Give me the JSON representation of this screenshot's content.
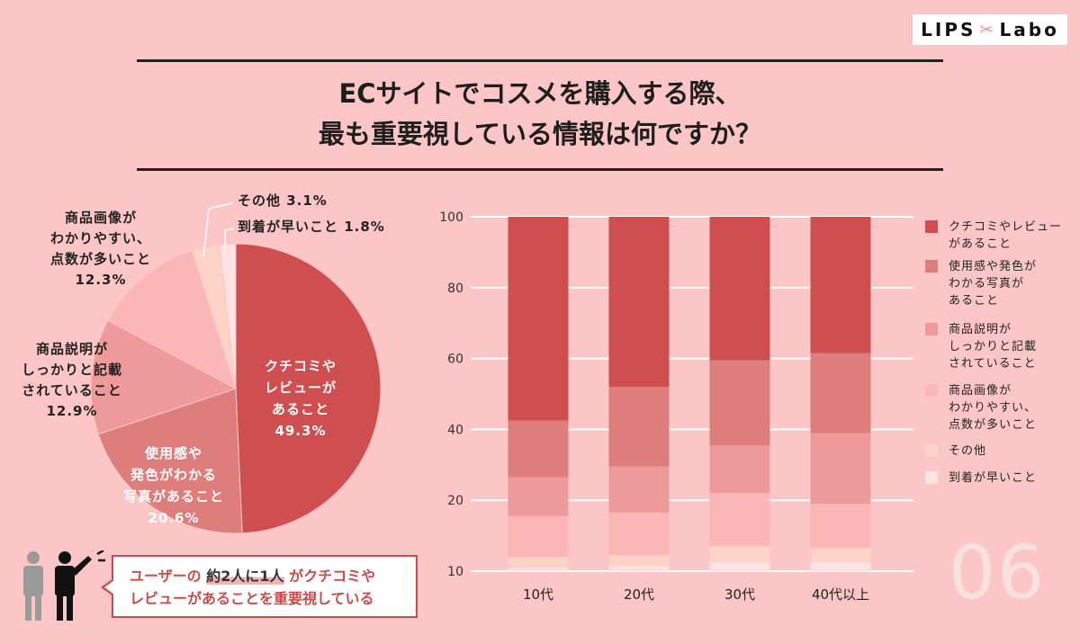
{
  "brand": {
    "left": "LIPS",
    "right": "Labo"
  },
  "title": {
    "line1": "ECサイトでコスメを購入する際、",
    "line2": "最も重要視している情報は何ですか？"
  },
  "colors": {
    "background": "#fbc6c5",
    "reviews": "#cf4f51",
    "photos": "#dd7e7c",
    "description": "#ef9a9a",
    "images": "#fbb7b7",
    "other": "#fcd3c4",
    "delivery": "#fde3e3"
  },
  "pie_labels": [
    {
      "lines": [
        "クチコミや",
        "レビューが",
        "あること",
        "49.3%"
      ]
    },
    {
      "lines": [
        "使用感や",
        "発色がわかる",
        "写真があること",
        "20.6%"
      ]
    },
    {
      "lines": [
        "商品説明が",
        "しっかりと記載",
        "されていること",
        "12.9%"
      ]
    },
    {
      "lines": [
        "商品画像が",
        "わかりやすい、",
        "点数が多いこと",
        "12.3%"
      ]
    },
    {
      "lines": [
        "その他 3.1%"
      ]
    },
    {
      "lines": [
        "到着が早いこと 1.8%"
      ]
    }
  ],
  "legend": [
    {
      "lines": [
        "クチコミやレビュー",
        "があること"
      ]
    },
    {
      "lines": [
        "使用感や発色が",
        "わかる写真が",
        "あること"
      ]
    },
    {
      "lines": [
        "商品説明が",
        "しっかりと記載",
        "されていること"
      ]
    },
    {
      "lines": [
        "商品画像が",
        "わかりやすい、",
        "点数が多いこと"
      ]
    },
    {
      "lines": [
        "その他"
      ]
    },
    {
      "lines": [
        "到着が早いこと"
      ]
    }
  ],
  "y_ticks": [
    "100",
    "80",
    "60",
    "40",
    "20",
    "10"
  ],
  "callout": {
    "part1": "ユーザーの",
    "highlight1": "約2人に1人",
    "part2": "がクチコミや",
    "line2": "レビューがあることを重要視している"
  },
  "page_number": "06",
  "chart_data": [
    {
      "type": "pie",
      "labels": [
        "クチコミやレビューがあること",
        "使用感や発色がわかる写真があること",
        "商品説明がしっかりと記載されていること",
        "商品画像がわかりやすい、点数が多いこと",
        "その他",
        "到着が早いこと"
      ],
      "values": [
        49.3,
        20.6,
        12.9,
        12.3,
        3.1,
        1.8
      ]
    },
    {
      "type": "bar",
      "stacked": true,
      "categories": [
        "10代",
        "20代",
        "30代",
        "40代以上"
      ],
      "y_tick_labels": [
        "100",
        "80",
        "60",
        "40",
        "20",
        "10"
      ],
      "legend_position": "right",
      "series": [
        {
          "name": "到着が早いこと",
          "values": [
            1,
            1.5,
            2.5,
            2.5
          ]
        },
        {
          "name": "その他",
          "values": [
            3,
            3,
            4.5,
            4
          ]
        },
        {
          "name": "商品画像がわかりやすい、点数が多いこと",
          "values": [
            11.5,
            12,
            15,
            12.5
          ]
        },
        {
          "name": "商品説明がしっかりと記載されていること",
          "values": [
            11,
            13,
            13.5,
            20
          ]
        },
        {
          "name": "使用感や発色がわかる写真があること",
          "values": [
            16,
            22.5,
            24,
            22.5
          ]
        },
        {
          "name": "クチコミやレビューがあること",
          "values": [
            57.5,
            48,
            40.5,
            38.5
          ]
        }
      ]
    }
  ]
}
